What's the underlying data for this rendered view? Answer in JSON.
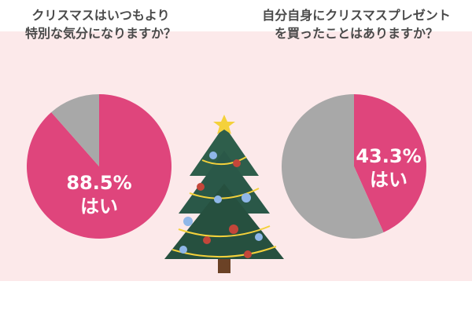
{
  "chart_data": [
    {
      "type": "pie",
      "title_lines": [
        "クリスマスはいつもより",
        "特別な気分になりますか？"
      ],
      "slices": [
        {
          "label": "はい",
          "value": 88.5,
          "color": "#df457c"
        },
        {
          "label": "",
          "value": 11.5,
          "color": "#a8a8a8"
        }
      ],
      "value_text": "88.5%",
      "answer_text": "はい"
    },
    {
      "type": "pie",
      "title_lines": [
        "自分自身にクリスマスプレゼント",
        "を買ったことはありますか？"
      ],
      "slices": [
        {
          "label": "はい",
          "value": 43.3,
          "color": "#df457c"
        },
        {
          "label": "",
          "value": 56.7,
          "color": "#a8a8a8"
        }
      ],
      "value_text": "43.3%",
      "answer_text": "はい"
    }
  ],
  "colors": {
    "background": "#fce9ea",
    "yes": "#df457c",
    "no": "#a8a8a8"
  },
  "decoration": "christmas-tree-icon"
}
